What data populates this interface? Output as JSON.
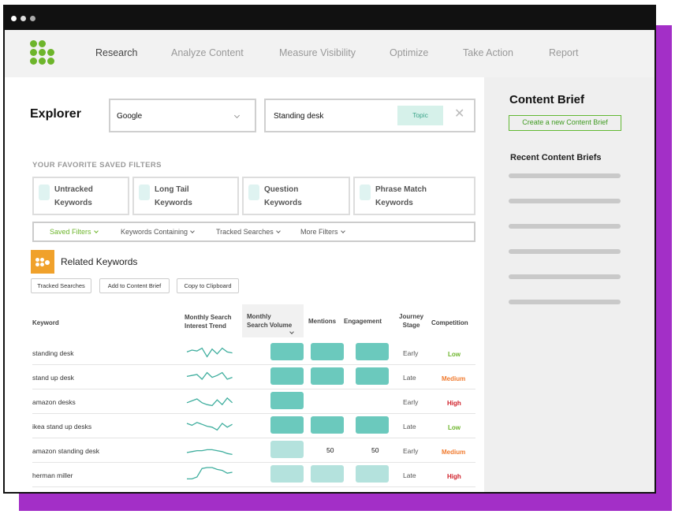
{
  "colors": {
    "accent_green": "#6db52b",
    "teal": "#6bc9bd",
    "teal_light": "#b4e2dd",
    "low": "#6db52b",
    "medium": "#f07a2e",
    "high": "#d0202a",
    "purple": "#a32fc7"
  },
  "nav": {
    "logo_icon": "grid-dots-logo-icon",
    "items": [
      "Research",
      "Analyze Content",
      "Measure Visibility",
      "Optimize",
      "Take Action",
      "Report"
    ],
    "active_index": 0
  },
  "explorer": {
    "title": "Explorer",
    "engine_value": "Google",
    "search_value": "Standing desk",
    "topic_label": "Topic"
  },
  "favorites": {
    "title": "YOUR FAVORITE SAVED FILTERS",
    "cards": [
      "Untracked\nKeywords",
      "Long Tail\nKeywords",
      "Question\nKeywords",
      "Phrase Match\nKeywords"
    ]
  },
  "filter_bar": [
    "Saved Filters",
    "Keywords Containing",
    "Tracked Searches",
    "More Filters"
  ],
  "related": {
    "title": "Related Keywords",
    "buttons": [
      "Tracked Searches",
      "Add to Content Brief",
      "Copy to Clipboard"
    ]
  },
  "table": {
    "headers": {
      "keyword": "Keyword",
      "trend": "Monthly Search\nInterest Trend",
      "volume": "Monthly\nSearch Volume",
      "mentions": "Mentions",
      "engagement": "Engagement",
      "stage": "Journey\nStage",
      "competition": "Competition"
    },
    "rows": [
      {
        "keyword": "standing desk",
        "stage": "Early",
        "competition": "Low",
        "volume_bar": "full",
        "mentions": "bar",
        "engagement": "bar",
        "trend": [
          8,
          10,
          9,
          12,
          3,
          11,
          6,
          12,
          8,
          7
        ]
      },
      {
        "keyword": "stand up desk",
        "stage": "Late",
        "competition": "Medium",
        "volume_bar": "full",
        "mentions": "bar",
        "engagement": "bar",
        "trend": [
          8,
          9,
          10,
          5,
          12,
          7,
          9,
          12,
          5,
          7
        ]
      },
      {
        "keyword": "amazon desks",
        "stage": "Early",
        "competition": "High",
        "volume_bar": "full",
        "mentions": "",
        "engagement": "",
        "trend": [
          6,
          8,
          10,
          6,
          4,
          3,
          9,
          4,
          11,
          6
        ]
      },
      {
        "keyword": "ikea stand up desks",
        "stage": "Late",
        "competition": "Low",
        "volume_bar": "full",
        "mentions": "bar",
        "engagement": "bar",
        "trend": [
          10,
          8,
          11,
          9,
          7,
          6,
          3,
          10,
          6,
          9
        ]
      },
      {
        "keyword": "amazon standing desk",
        "stage": "Early",
        "competition": "Medium",
        "volume_bar": "light",
        "mentions": "50",
        "engagement": "50",
        "trend": [
          5,
          6,
          7,
          7,
          8,
          8,
          7,
          6,
          4,
          3
        ]
      },
      {
        "keyword": "herman miller",
        "stage": "Late",
        "competition": "High",
        "volume_bar": "light",
        "mentions": "lightbar",
        "engagement": "lightbar",
        "trend": [
          3,
          3,
          5,
          14,
          15,
          15,
          13,
          12,
          9,
          10
        ]
      }
    ]
  },
  "side": {
    "title": "Content Brief",
    "create_button": "Create a new Content Brief",
    "recent_title": "Recent Content Briefs",
    "placeholder_lines": 6
  }
}
